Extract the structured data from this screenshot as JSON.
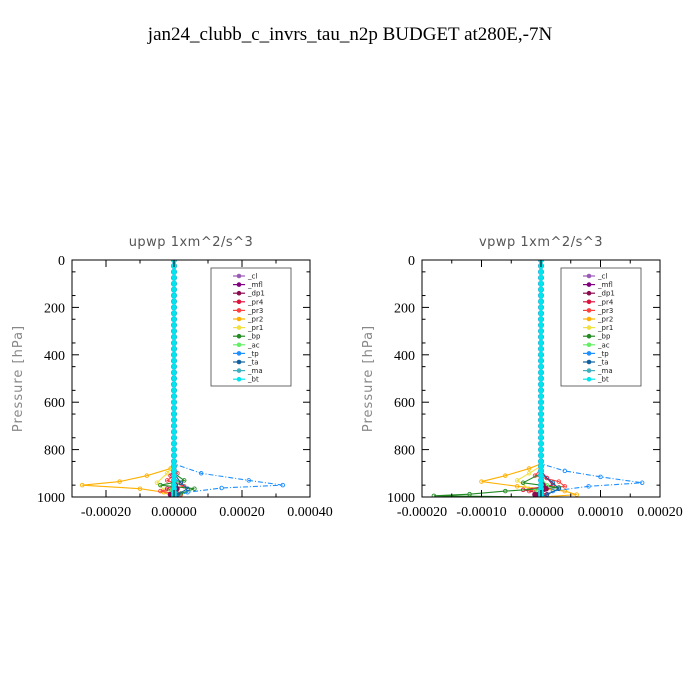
{
  "page_title": "jan24_clubb_c_invrs_tau_n2p  BUDGET at280E,-7N",
  "legend_entries": [
    {
      "name": "_cl",
      "color": "#9b59b6"
    },
    {
      "name": "_mfl",
      "color": "#800080"
    },
    {
      "name": "_dp1",
      "color": "#8b0a50"
    },
    {
      "name": "_pr4",
      "color": "#dc143c"
    },
    {
      "name": "_pr3",
      "color": "#ff4040"
    },
    {
      "name": "_pr2",
      "color": "#ffb000"
    },
    {
      "name": "_pr1",
      "color": "#f0e040"
    },
    {
      "name": "_bp",
      "color": "#228b22"
    },
    {
      "name": "_ac",
      "color": "#66ee66"
    },
    {
      "name": "_tp",
      "color": "#1e90ff"
    },
    {
      "name": "_ta",
      "color": "#1060a0"
    },
    {
      "name": "_ma",
      "color": "#40b0c0"
    },
    {
      "name": "_bt",
      "color": "#00e5ee"
    }
  ],
  "chart_data": [
    {
      "type": "line",
      "title": "upwp   1xm^2/s^3",
      "xlabel": "",
      "ylabel": "Pressure [hPa]",
      "xlim": [
        -0.0003,
        0.0004
      ],
      "ylim": [
        1000,
        0
      ],
      "x_ticks": [
        -0.0002,
        0.0,
        0.0002,
        0.0004
      ],
      "x_tick_labels": [
        "-0.00020",
        "0.00000",
        "0.00020",
        "0.00040"
      ],
      "y_ticks": [
        0,
        200,
        400,
        600,
        800,
        1000
      ],
      "y_tick_labels": [
        "0",
        "200",
        "400",
        "600",
        "800",
        "1000"
      ],
      "legend_position": "top-right",
      "pressure_levels": [
        0,
        25,
        50,
        75,
        100,
        125,
        150,
        175,
        200,
        225,
        250,
        275,
        300,
        325,
        350,
        375,
        400,
        425,
        450,
        475,
        500,
        525,
        550,
        575,
        600,
        625,
        650,
        675,
        700,
        725,
        750,
        775,
        800,
        825,
        850,
        870,
        890,
        910,
        930,
        950,
        965,
        980,
        990,
        1000
      ],
      "series": [
        {
          "name": "_pr2",
          "points": [
            [
              0,
              0
            ],
            [
              0,
              850
            ],
            [
              -1e-05,
              880
            ],
            [
              -8e-05,
              910
            ],
            [
              -0.00016,
              935
            ],
            [
              -0.00027,
              950
            ],
            [
              -0.0001,
              965
            ],
            [
              -3e-05,
              980
            ],
            [
              0,
              1000
            ]
          ]
        },
        {
          "name": "_pr1",
          "points": [
            [
              0,
              0
            ],
            [
              0,
              860
            ],
            [
              -2e-05,
              900
            ],
            [
              -5e-05,
              940
            ],
            [
              -3e-05,
              970
            ],
            [
              0,
              1000
            ]
          ]
        },
        {
          "name": "_pr3",
          "points": [
            [
              0,
              0
            ],
            [
              0,
              870
            ],
            [
              1e-05,
              900
            ],
            [
              -2e-05,
              930
            ],
            [
              3e-05,
              955
            ],
            [
              -4e-05,
              975
            ],
            [
              2e-05,
              990
            ],
            [
              0,
              1000
            ]
          ]
        },
        {
          "name": "_pr4",
          "points": [
            [
              0,
              0
            ],
            [
              0,
              880
            ],
            [
              -1e-05,
              910
            ],
            [
              2e-05,
              940
            ],
            [
              -2e-05,
              965
            ],
            [
              1e-05,
              985
            ],
            [
              0,
              1000
            ]
          ]
        },
        {
          "name": "_bp",
          "points": [
            [
              0,
              0
            ],
            [
              0,
              900
            ],
            [
              3e-05,
              930
            ],
            [
              -4e-05,
              950
            ],
            [
              6e-05,
              965
            ],
            [
              2e-05,
              985
            ],
            [
              0,
              1000
            ]
          ]
        },
        {
          "name": "_ac",
          "points": [
            [
              0,
              0
            ],
            [
              0,
              910
            ],
            [
              1e-05,
              940
            ],
            [
              -1e-05,
              970
            ],
            [
              0,
              1000
            ]
          ]
        },
        {
          "name": "_tp",
          "points": [
            [
              0,
              0
            ],
            [
              0,
              860
            ],
            [
              8e-05,
              900
            ],
            [
              0.00022,
              930
            ],
            [
              0.00032,
              950
            ],
            [
              0.00014,
              962
            ],
            [
              4e-05,
              980
            ],
            [
              0,
              1000
            ]
          ]
        },
        {
          "name": "_ta",
          "points": [
            [
              0,
              0
            ],
            [
              0,
              900
            ],
            [
              2e-05,
              940
            ],
            [
              4e-05,
              965
            ],
            [
              1e-05,
              990
            ],
            [
              0,
              1000
            ]
          ]
        },
        {
          "name": "_ma",
          "points": [
            [
              0,
              0
            ],
            [
              0,
              1000
            ]
          ]
        },
        {
          "name": "_dp1",
          "points": [
            [
              0,
              0
            ],
            [
              0,
              940
            ],
            [
              1e-05,
              970
            ],
            [
              -1e-05,
              990
            ],
            [
              0,
              1000
            ]
          ]
        },
        {
          "name": "_mfl",
          "points": [
            [
              0,
              0
            ],
            [
              0,
              1000
            ]
          ]
        },
        {
          "name": "_cl",
          "points": [
            [
              0,
              0
            ],
            [
              0,
              1000
            ]
          ]
        },
        {
          "name": "_bt",
          "points": [
            [
              0,
              0
            ],
            [
              0,
              1000
            ]
          ]
        }
      ]
    },
    {
      "type": "line",
      "title": "vpwp   1xm^2/s^3",
      "xlabel": "",
      "ylabel": "Pressure [hPa]",
      "xlim": [
        -0.0002,
        0.0002
      ],
      "ylim": [
        1000,
        0
      ],
      "x_ticks": [
        -0.0002,
        -0.0001,
        0.0,
        0.0001,
        0.0002
      ],
      "x_tick_labels": [
        "-0.00020",
        "-0.00010",
        "0.00000",
        "0.00010",
        "0.00020"
      ],
      "y_ticks": [
        0,
        200,
        400,
        600,
        800,
        1000
      ],
      "y_tick_labels": [
        "0",
        "200",
        "400",
        "600",
        "800",
        "1000"
      ],
      "legend_position": "top-right",
      "pressure_levels": [
        0,
        25,
        50,
        75,
        100,
        125,
        150,
        175,
        200,
        225,
        250,
        275,
        300,
        325,
        350,
        375,
        400,
        425,
        450,
        475,
        500,
        525,
        550,
        575,
        600,
        625,
        650,
        675,
        700,
        725,
        750,
        775,
        800,
        825,
        850,
        870,
        890,
        910,
        930,
        950,
        965,
        980,
        990,
        1000
      ],
      "series": [
        {
          "name": "_pr2",
          "points": [
            [
              0,
              0
            ],
            [
              0,
              860
            ],
            [
              -2e-05,
              880
            ],
            [
              -6e-05,
              910
            ],
            [
              -0.0001,
              935
            ],
            [
              -4e-05,
              955
            ],
            [
              4e-05,
              975
            ],
            [
              6e-05,
              990
            ],
            [
              0,
              1000
            ]
          ]
        },
        {
          "name": "_pr1",
          "points": [
            [
              0,
              0
            ],
            [
              0,
              870
            ],
            [
              -2e-05,
              900
            ],
            [
              -4e-05,
              930
            ],
            [
              -2e-05,
              965
            ],
            [
              0,
              1000
            ]
          ]
        },
        {
          "name": "_pr3",
          "points": [
            [
              0,
              0
            ],
            [
              0,
              880
            ],
            [
              -1e-05,
              910
            ],
            [
              3e-05,
              935
            ],
            [
              4e-05,
              955
            ],
            [
              -2e-05,
              975
            ],
            [
              1e-05,
              990
            ],
            [
              0,
              1000
            ]
          ]
        },
        {
          "name": "_pr4",
          "points": [
            [
              0,
              0
            ],
            [
              0,
              890
            ],
            [
              1e-05,
              920
            ],
            [
              2e-05,
              950
            ],
            [
              -3e-05,
              970
            ],
            [
              1e-05,
              988
            ],
            [
              0,
              1000
            ]
          ]
        },
        {
          "name": "_bp",
          "points": [
            [
              0,
              0
            ],
            [
              0,
              900
            ],
            [
              -3e-05,
              940
            ],
            [
              3e-05,
              960
            ],
            [
              -6e-05,
              975
            ],
            [
              -0.00012,
              988
            ],
            [
              -0.00018,
              995
            ],
            [
              0,
              1000
            ]
          ]
        },
        {
          "name": "_ac",
          "points": [
            [
              0,
              0
            ],
            [
              0,
              920
            ],
            [
              1e-05,
              950
            ],
            [
              -1e-05,
              975
            ],
            [
              0,
              1000
            ]
          ]
        },
        {
          "name": "_tp",
          "points": [
            [
              0,
              0
            ],
            [
              0,
              860
            ],
            [
              4e-05,
              890
            ],
            [
              0.0001,
              915
            ],
            [
              0.00017,
              940
            ],
            [
              8e-05,
              955
            ],
            [
              2e-05,
              975
            ],
            [
              0,
              1000
            ]
          ]
        },
        {
          "name": "_ta",
          "points": [
            [
              0,
              0
            ],
            [
              0,
              900
            ],
            [
              2e-05,
              940
            ],
            [
              3e-05,
              965
            ],
            [
              1e-05,
              990
            ],
            [
              0,
              1000
            ]
          ]
        },
        {
          "name": "_ma",
          "points": [
            [
              0,
              0
            ],
            [
              0,
              1000
            ]
          ]
        },
        {
          "name": "_dp1",
          "points": [
            [
              0,
              0
            ],
            [
              0,
              940
            ],
            [
              1e-05,
              970
            ],
            [
              -1e-05,
              990
            ],
            [
              0,
              1000
            ]
          ]
        },
        {
          "name": "_mfl",
          "points": [
            [
              0,
              0
            ],
            [
              0,
              1000
            ]
          ]
        },
        {
          "name": "_cl",
          "points": [
            [
              0,
              0
            ],
            [
              0,
              1000
            ]
          ]
        },
        {
          "name": "_bt",
          "points": [
            [
              0,
              0
            ],
            [
              0,
              1000
            ]
          ]
        }
      ]
    }
  ]
}
